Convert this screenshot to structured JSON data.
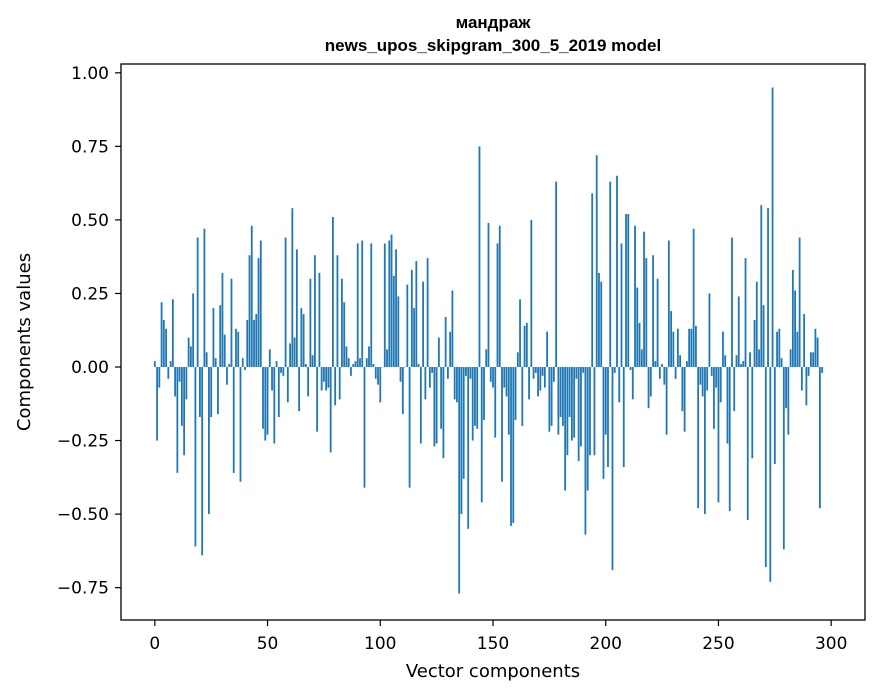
{
  "chart_data": {
    "type": "bar",
    "title": "мандраж",
    "subtitle": "news_upos_skipgram_300_5_2019 model",
    "xlabel": "Vector components",
    "ylabel": "Components values",
    "xlim": [
      -15,
      315
    ],
    "ylim": [
      -0.86,
      1.03
    ],
    "xticks": [
      0,
      50,
      100,
      150,
      200,
      250,
      300
    ],
    "xtick_labels": [
      "0",
      "50",
      "100",
      "150",
      "200",
      "250",
      "300"
    ],
    "yticks": [
      -0.75,
      -0.5,
      -0.25,
      0.0,
      0.25,
      0.5,
      0.75,
      1.0
    ],
    "ytick_labels": [
      "−0.75",
      "−0.50",
      "−0.25",
      "0.00",
      "0.25",
      "0.50",
      "0.75",
      "1.00"
    ],
    "color": "#1f77b4",
    "values": [
      0.02,
      -0.25,
      -0.07,
      0.22,
      0.16,
      0.13,
      -0.04,
      0.02,
      0.23,
      -0.1,
      -0.36,
      -0.05,
      -0.2,
      -0.3,
      -0.11,
      0.1,
      0.07,
      0.25,
      -0.61,
      0.44,
      -0.17,
      -0.64,
      0.47,
      0.05,
      -0.5,
      -0.17,
      0.2,
      0.03,
      -0.16,
      0.21,
      0.32,
      0.11,
      -0.06,
      0.01,
      0.3,
      -0.36,
      0.13,
      0.12,
      -0.39,
      0.03,
      -0.01,
      0.16,
      0.38,
      0.48,
      0.16,
      0.18,
      0.37,
      0.43,
      -0.21,
      -0.25,
      -0.23,
      0.06,
      -0.08,
      -0.26,
      0.02,
      -0.17,
      -0.02,
      -0.03,
      0.44,
      -0.12,
      0.08,
      0.54,
      0.1,
      0.4,
      -0.15,
      0.2,
      0.18,
      0.01,
      -0.1,
      0.3,
      0.04,
      0.38,
      -0.22,
      0.32,
      -0.08,
      -0.05,
      -0.08,
      -0.07,
      -0.29,
      0.51,
      -0.13,
      0.38,
      -0.11,
      0.3,
      0.22,
      0.07,
      0.03,
      -0.03,
      0.01,
      0.02,
      0.42,
      0.03,
      0.43,
      -0.41,
      0.03,
      0.07,
      0.42,
      0.01,
      -0.04,
      -0.06,
      -0.12,
      0.0,
      0.42,
      0.06,
      0.43,
      0.45,
      0.31,
      0.4,
      0.24,
      -0.05,
      -0.16,
      0.0,
      0.28,
      -0.41,
      0.33,
      0.2,
      0.36,
      0.01,
      -0.26,
      0.29,
      -0.11,
      0.37,
      -0.07,
      -0.02,
      -0.27,
      -0.26,
      0.1,
      -0.21,
      -0.31,
      0.17,
      -0.04,
      0.12,
      0.26,
      -0.11,
      -0.12,
      -0.77,
      -0.5,
      -0.38,
      -0.03,
      -0.55,
      -0.04,
      -0.25,
      -0.2,
      -0.21,
      0.75,
      -0.46,
      -0.18,
      0.06,
      0.49,
      -0.05,
      -0.07,
      -0.24,
      0.42,
      0.48,
      -0.39,
      -0.07,
      -0.1,
      -0.23,
      -0.54,
      -0.53,
      -0.18,
      0.05,
      0.23,
      -0.2,
      0.14,
      0.15,
      -0.11,
      0.5,
      -0.04,
      -0.02,
      -0.1,
      -0.08,
      -0.03,
      -0.07,
      0.12,
      -0.22,
      -0.2,
      -0.05,
      0.63,
      -0.23,
      -0.17,
      -0.2,
      -0.42,
      -0.3,
      -0.17,
      -0.25,
      -0.24,
      -0.04,
      -0.32,
      -0.27,
      -0.02,
      -0.57,
      -0.42,
      -0.3,
      0.59,
      -0.3,
      0.72,
      0.32,
      0.29,
      -0.38,
      -0.23,
      -0.34,
      0.63,
      -0.69,
      -0.02,
      0.65,
      -0.12,
      0.42,
      -0.34,
      0.52,
      0.52,
      -0.01,
      -0.11,
      0.48,
      0.27,
      0.15,
      0.06,
      0.46,
      0.37,
      -0.14,
      -0.1,
      0.38,
      0.02,
      0.3,
      -0.04,
      0.01,
      -0.06,
      -0.23,
      0.43,
      0.19,
      0.12,
      -0.04,
      0.13,
      0.04,
      -0.15,
      -0.22,
      0.02,
      0.13,
      0.13,
      0.47,
      0.14,
      -0.48,
      -0.06,
      -0.1,
      -0.5,
      -0.08,
      0.25,
      -0.03,
      -0.21,
      -0.07,
      -0.46,
      -0.12,
      0.12,
      0.04,
      -0.26,
      -0.49,
      0.44,
      -0.15,
      0.04,
      0.24,
      0.01,
      0.02,
      0.37,
      -0.52,
      0.05,
      -0.31,
      0.16,
      0.29,
      0.06,
      0.55,
      0.21,
      -0.68,
      0.54,
      -0.73,
      0.95,
      -0.33,
      0.12,
      0.13,
      0.03,
      -0.62,
      -0.14,
      -0.23,
      0.06,
      0.33,
      0.26,
      0.12,
      0.44,
      -0.08,
      0.18,
      -0.13,
      -0.03,
      0.05,
      0.05,
      0.13,
      0.1,
      -0.48,
      -0.02
    ]
  }
}
